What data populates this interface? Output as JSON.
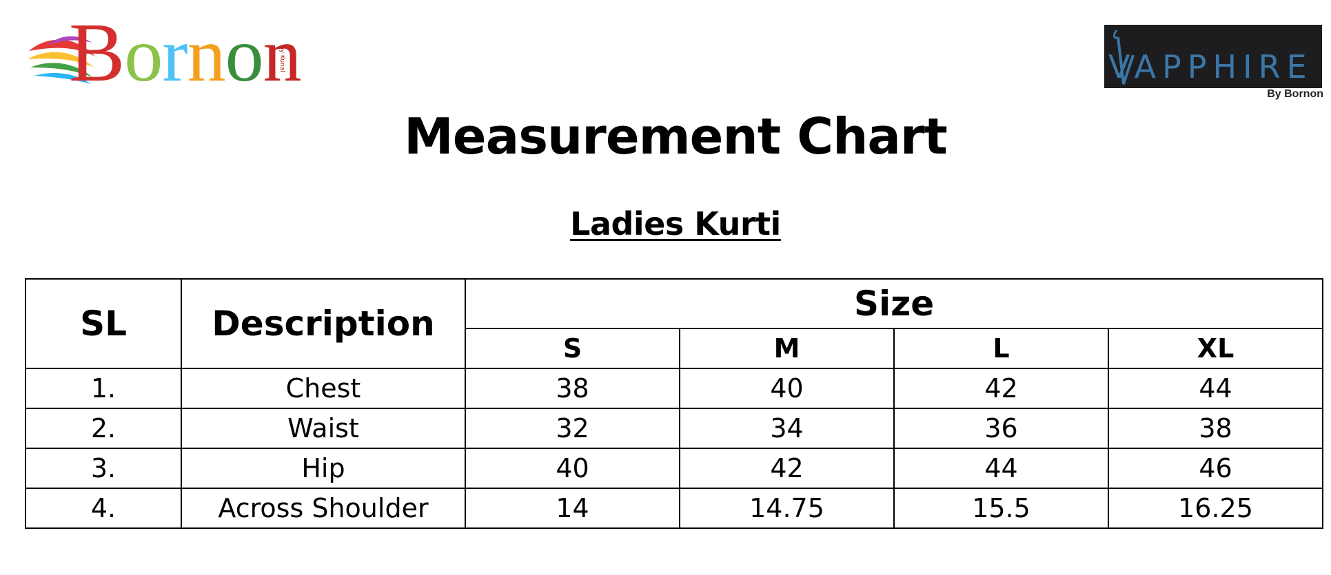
{
  "brand_left": {
    "letters": [
      "B",
      "o",
      "r",
      "n",
      "o",
      "n"
    ],
    "letter_colors": [
      "#d32f2f",
      "#8bc34a",
      "#4fc3f7",
      "#f4a01c",
      "#388e3c",
      "#c62828"
    ],
    "tagline": "by Kunal",
    "wing_colors": [
      "#e53935",
      "#fbc02d",
      "#43a047",
      "#29b6f6",
      "#ab47bc"
    ]
  },
  "brand_right": {
    "name": "VAPPHIRE",
    "byline": "By Bornon",
    "plate_color": "#1d1d1f",
    "text_color": "#3b76a6"
  },
  "title": "Measurement Chart",
  "subtitle": "Ladies Kurti",
  "table": {
    "col_sl": "SL",
    "col_desc": "Description",
    "col_size": "Size",
    "sizes": [
      "S",
      "M",
      "L",
      "XL"
    ],
    "rows": [
      {
        "sl": "1.",
        "desc": "Chest",
        "values": [
          "38",
          "40",
          "42",
          "44"
        ]
      },
      {
        "sl": "2.",
        "desc": "Waist",
        "values": [
          "32",
          "34",
          "36",
          "38"
        ]
      },
      {
        "sl": "3.",
        "desc": "Hip",
        "values": [
          "40",
          "42",
          "44",
          "46"
        ]
      },
      {
        "sl": "4.",
        "desc": "Across Shoulder",
        "values": [
          "14",
          "14.75",
          "15.5",
          "16.25"
        ]
      }
    ]
  }
}
